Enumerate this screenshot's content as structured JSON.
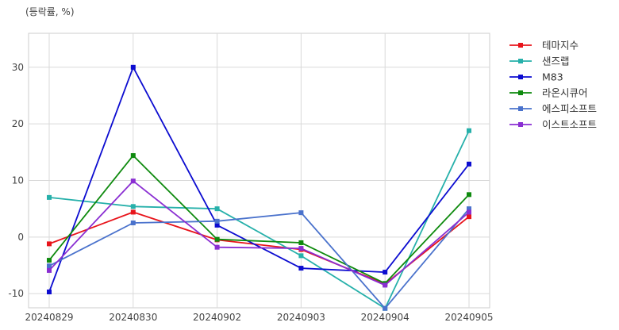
{
  "chart_data": {
    "type": "line",
    "unit_label": "(등락률, %)",
    "categories": [
      "20240829",
      "20240830",
      "20240902",
      "20240903",
      "20240904",
      "20240905"
    ],
    "ylim": [
      -12.5,
      36
    ],
    "yticks": [
      -10,
      0,
      10,
      20,
      30
    ],
    "grid": true,
    "legend_position": "right",
    "series": [
      {
        "name": "테마지수",
        "color": "#e8141b",
        "values": [
          -1.2,
          4.4,
          -0.5,
          -2.2,
          -8.3,
          3.6
        ]
      },
      {
        "name": "샌즈랩",
        "color": "#26b0aa",
        "values": [
          7.0,
          5.4,
          5.0,
          -3.3,
          -12.6,
          18.8
        ]
      },
      {
        "name": "M83",
        "color": "#0c0cd0",
        "values": [
          -9.7,
          30.0,
          2.1,
          -5.5,
          -6.2,
          12.9
        ]
      },
      {
        "name": "라온시큐어",
        "color": "#0e8a0e",
        "values": [
          -4.1,
          14.4,
          -0.4,
          -1.0,
          -8.2,
          7.5
        ]
      },
      {
        "name": "에스피소프트",
        "color": "#4a72cc",
        "values": [
          -5.1,
          2.5,
          2.8,
          4.3,
          -12.6,
          5.0
        ]
      },
      {
        "name": "이스트소프트",
        "color": "#8a2ed2",
        "values": [
          -5.9,
          9.9,
          -1.8,
          -2.0,
          -8.5,
          4.4
        ]
      }
    ]
  }
}
